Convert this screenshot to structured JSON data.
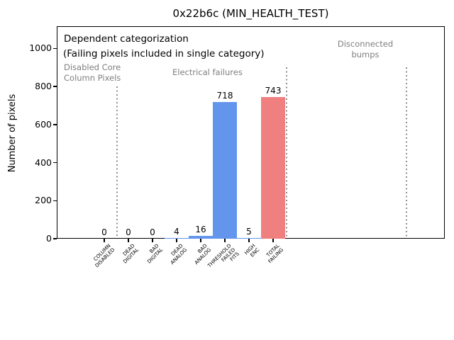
{
  "chart_data": {
    "type": "bar",
    "title": "0x22b6c (MIN_HEALTH_TEST)",
    "xlabel": "",
    "ylabel": "Number of pixels",
    "ylim": [
      0,
      1117
    ],
    "yticks": [
      0,
      200,
      400,
      600,
      800,
      1000
    ],
    "grid": false,
    "legend": "none",
    "categories": [
      "COLUMN\nDISABLED",
      "DEAD\nDIGITAL",
      "BAD\nDIGITAL",
      "DEAD\nANALOG",
      "BAD\nANALOG",
      "THRESHOLD\nFAILED\nFITS",
      "HIGH\nENC",
      "TOTAL\nFAILING"
    ],
    "values": [
      0,
      0,
      0,
      4,
      16,
      718,
      5,
      743
    ],
    "value_labels": [
      "0",
      "0",
      "0",
      "4",
      "16",
      "718",
      "5",
      "743"
    ],
    "bar_colors": [
      "#6495ed",
      "#6495ed",
      "#6495ed",
      "#6495ed",
      "#6495ed",
      "#6495ed",
      "#6495ed",
      "#f08080"
    ],
    "colors": {
      "bar_blue": "#6495ed",
      "bar_red": "#f08080",
      "muted_text": "#7f7f7f",
      "separator": "#8f8f8f",
      "axis": "#000000"
    },
    "annotations": {
      "primary": [
        "Dependent categorization",
        "(Failing pixels included in single category)"
      ],
      "sections": [
        {
          "label": "Disabled Core\nColumn Pixels"
        },
        {
          "label": "Electrical failures"
        },
        {
          "label": "Disconnected\nbumps"
        }
      ]
    }
  }
}
